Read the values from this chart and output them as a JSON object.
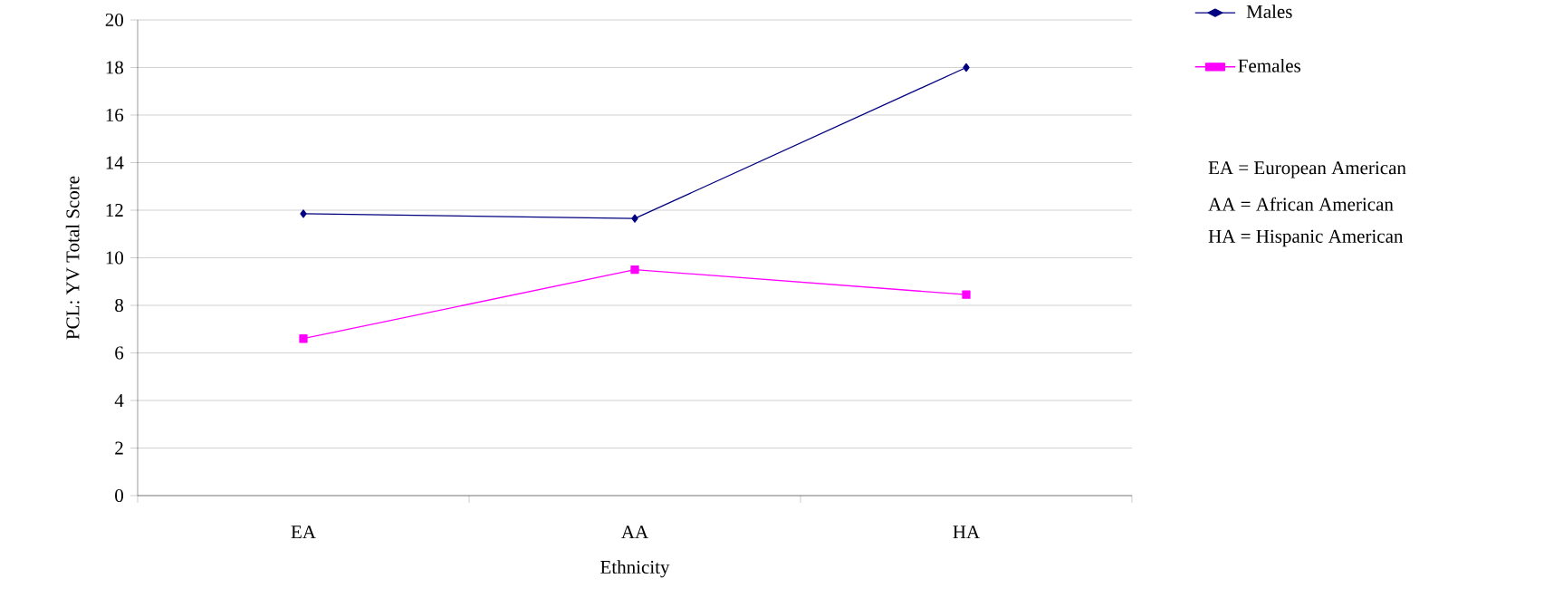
{
  "chart_data": {
    "type": "line",
    "xlabel": "Ethnicity",
    "ylabel": "PCL: YV Total Score",
    "categories": [
      "EA",
      "AA",
      "HA"
    ],
    "series": [
      {
        "name": "Males",
        "color": "#000080",
        "marker": "diamond",
        "values": [
          11.85,
          11.65,
          18.0
        ]
      },
      {
        "name": "Females",
        "color": "#ff00ff",
        "marker": "square",
        "values": [
          6.6,
          9.5,
          8.45
        ]
      }
    ],
    "ylim": [
      0,
      20
    ],
    "yticks": [
      0,
      2,
      4,
      6,
      8,
      10,
      12,
      14,
      16,
      18,
      20
    ],
    "grid": "y",
    "legend": "right",
    "line_style": "solid",
    "annotations": [
      "EA = European American",
      "AA = African American",
      "HA = Hispanic American"
    ]
  }
}
